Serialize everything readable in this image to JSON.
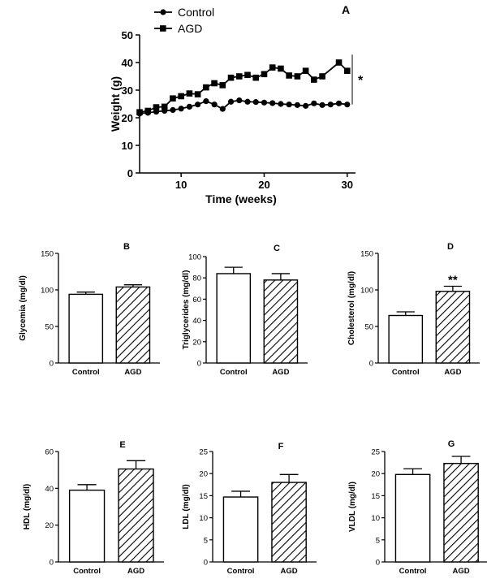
{
  "chart_data": [
    {
      "id": "A",
      "type": "line",
      "panel_label": "A",
      "xlabel": "Time (weeks)",
      "ylabel": "Weight (g)",
      "xlim": [
        5,
        31
      ],
      "ylim": [
        0,
        50
      ],
      "xticks": [
        10,
        20,
        30
      ],
      "yticks": [
        0,
        10,
        20,
        30,
        40,
        50
      ],
      "grid": false,
      "legend": "top-left",
      "significance": "*",
      "series": [
        {
          "name": "Control",
          "marker": "circle",
          "x": [
            5,
            6,
            7,
            8,
            9,
            10,
            11,
            12,
            13,
            14,
            15,
            16,
            17,
            18,
            19,
            20,
            21,
            22,
            23,
            24,
            25,
            26,
            27,
            28,
            29,
            30
          ],
          "y": [
            21.5,
            21.8,
            22.2,
            22.5,
            22.8,
            23.3,
            24.0,
            24.8,
            26.0,
            24.8,
            23.2,
            25.8,
            26.3,
            25.8,
            25.7,
            25.5,
            25.3,
            25.0,
            24.8,
            24.6,
            24.3,
            25.2,
            24.6,
            24.8,
            25.2,
            24.8
          ]
        },
        {
          "name": "AGD",
          "marker": "square",
          "x": [
            5,
            6,
            7,
            8,
            9,
            10,
            11,
            12,
            13,
            14,
            15,
            16,
            17,
            18,
            19,
            20,
            21,
            22,
            23,
            24,
            25,
            26,
            27,
            28,
            29,
            30
          ],
          "y": [
            22.0,
            22.5,
            23.8,
            24.0,
            27.0,
            27.8,
            28.8,
            28.5,
            31.0,
            32.5,
            31.8,
            34.5,
            35.0,
            35.5,
            34.5,
            35.8,
            38.2,
            37.8,
            35.3,
            35.0,
            37.0,
            33.8,
            35.0,
            null,
            40.0,
            37.0
          ]
        }
      ]
    },
    {
      "id": "B",
      "type": "bar",
      "panel_label": "B",
      "ylabel": "Glycemia (mg/dl)",
      "ylim": [
        0,
        150
      ],
      "yticks": [
        0,
        50,
        100,
        150
      ],
      "categories": [
        "Control",
        "AGD"
      ],
      "values": [
        94,
        104
      ],
      "errors": [
        3,
        3
      ],
      "annotations": [
        "",
        ""
      ]
    },
    {
      "id": "C",
      "type": "bar",
      "panel_label": "C",
      "ylabel": "Triglycerides (mg/dl)",
      "ylim": [
        0,
        100
      ],
      "yticks": [
        0,
        20,
        40,
        60,
        80,
        100
      ],
      "categories": [
        "Control",
        "AGD"
      ],
      "values": [
        84,
        78
      ],
      "errors": [
        6,
        6
      ],
      "annotations": [
        "",
        ""
      ]
    },
    {
      "id": "D",
      "type": "bar",
      "panel_label": "D",
      "ylabel": "Cholesterol (mg/dl)",
      "ylim": [
        0,
        150
      ],
      "yticks": [
        0,
        50,
        100,
        150
      ],
      "categories": [
        "Control",
        "AGD"
      ],
      "values": [
        65,
        98
      ],
      "errors": [
        5,
        7
      ],
      "annotations": [
        "",
        "**"
      ]
    },
    {
      "id": "E",
      "type": "bar",
      "panel_label": "E",
      "ylabel": "HDL (mg/dl)",
      "ylim": [
        0,
        60
      ],
      "yticks": [
        0,
        20,
        40,
        60
      ],
      "categories": [
        "Control",
        "AGD"
      ],
      "values": [
        39,
        50.5
      ],
      "errors": [
        3,
        4.5
      ],
      "annotations": [
        "",
        ""
      ]
    },
    {
      "id": "F",
      "type": "bar",
      "panel_label": "F",
      "ylabel": "LDL (mg/dl)",
      "ylim": [
        0,
        25
      ],
      "yticks": [
        0,
        5,
        10,
        15,
        20,
        25
      ],
      "categories": [
        "Control",
        "AGD"
      ],
      "values": [
        14.7,
        18
      ],
      "errors": [
        1.3,
        1.8
      ],
      "annotations": [
        "",
        ""
      ]
    },
    {
      "id": "G",
      "type": "bar",
      "panel_label": "G",
      "ylabel": "VLDL (mg/dl)",
      "ylim": [
        0,
        25
      ],
      "yticks": [
        0,
        5,
        10,
        15,
        20,
        25
      ],
      "categories": [
        "Control",
        "AGD"
      ],
      "values": [
        19.8,
        22.3
      ],
      "errors": [
        1.3,
        1.6
      ],
      "annotations": [
        "",
        ""
      ]
    }
  ]
}
